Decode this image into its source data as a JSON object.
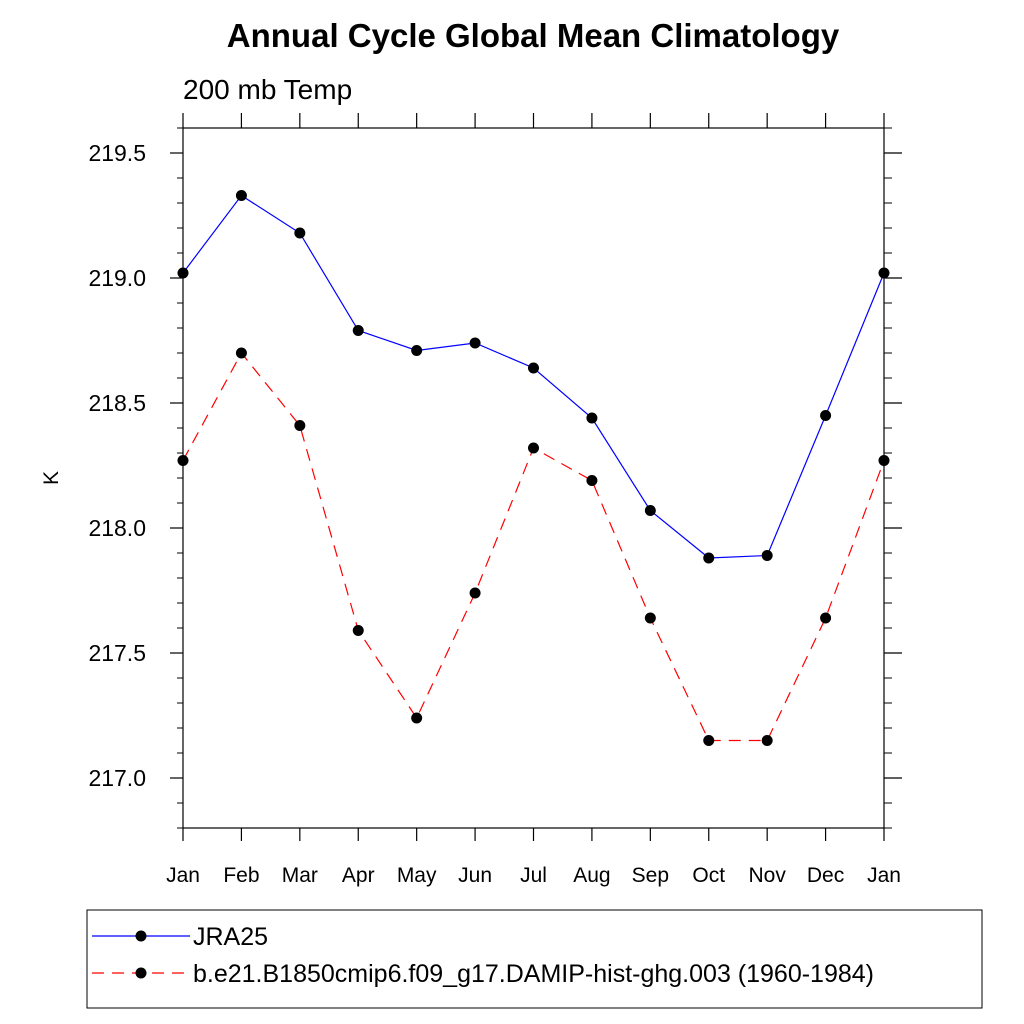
{
  "chart_data": {
    "type": "line",
    "title": "Annual Cycle Global Mean Climatology",
    "subtitle": "200 mb Temp",
    "xlabel": "",
    "ylabel": "K",
    "categories": [
      "Jan",
      "Feb",
      "Mar",
      "Apr",
      "May",
      "Jun",
      "Jul",
      "Aug",
      "Sep",
      "Oct",
      "Nov",
      "Dec",
      "Jan"
    ],
    "ylim": [
      216.8,
      219.6
    ],
    "yticks": [
      "217.0",
      "217.5",
      "218.0",
      "218.5",
      "219.0",
      "219.5"
    ],
    "grid": false,
    "legend_position": "bottom",
    "series": [
      {
        "name": "JRA25",
        "color": "#0000ff",
        "line_style": "solid",
        "marker": "filled-circle",
        "values": [
          219.02,
          219.33,
          219.18,
          218.79,
          218.71,
          218.74,
          218.64,
          218.44,
          218.07,
          217.88,
          217.89,
          218.45,
          219.02
        ]
      },
      {
        "name": "b.e21.B1850cmip6.f09_g17.DAMIP-hist-ghg.003 (1960-1984)",
        "color": "#ff0000",
        "line_style": "dashed",
        "marker": "filled-circle",
        "values": [
          218.27,
          218.7,
          218.41,
          217.59,
          217.24,
          217.74,
          218.32,
          218.19,
          217.64,
          217.15,
          217.15,
          217.64,
          218.27
        ]
      }
    ]
  }
}
